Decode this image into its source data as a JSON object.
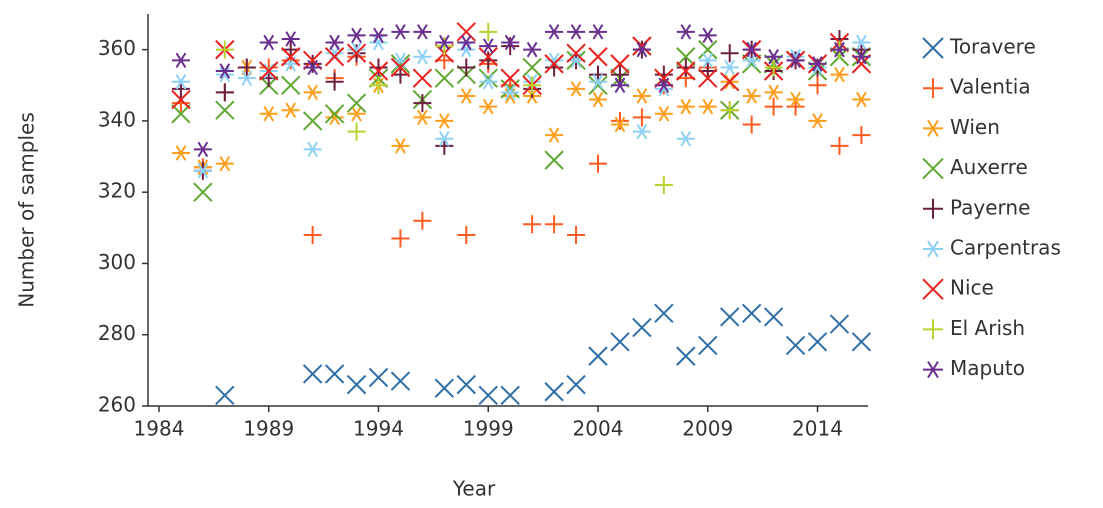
{
  "chart_data": {
    "type": "scatter",
    "x_label": "Year",
    "y_label": "Number of samples",
    "x": [
      1985,
      1986,
      1987,
      1988,
      1989,
      1990,
      1991,
      1992,
      1993,
      1994,
      1995,
      1996,
      1997,
      1998,
      1999,
      2000,
      2001,
      2002,
      2003,
      2004,
      2005,
      2006,
      2007,
      2008,
      2009,
      2010,
      2011,
      2012,
      2013,
      2014,
      2015,
      2016
    ],
    "xlim": [
      1983.5,
      2016.3
    ],
    "xticks": [
      1984,
      1989,
      1994,
      1999,
      2004,
      2009,
      2014
    ],
    "ylim": [
      260,
      370
    ],
    "yticks": [
      260,
      280,
      300,
      320,
      340,
      360
    ],
    "series": [
      {
        "name": "Toravere",
        "color": "#2f6fa7",
        "marker": "x",
        "values": [
          null,
          null,
          263,
          null,
          null,
          null,
          269,
          269,
          266,
          268,
          267,
          null,
          265,
          266,
          263,
          263,
          null,
          264,
          266,
          274,
          278,
          282,
          286,
          274,
          277,
          285,
          286,
          285,
          277,
          278,
          283,
          278
        ]
      },
      {
        "name": "Valentia",
        "color": "#ff5a1f",
        "marker": "plus",
        "values": [
          345,
          327,
          348,
          355,
          355,
          357,
          308,
          352,
          358,
          355,
          307,
          312,
          357,
          308,
          356,
          350,
          311,
          311,
          308,
          328,
          340,
          341,
          350,
          352,
          355,
          343,
          339,
          344,
          344,
          350,
          333,
          336
        ]
      },
      {
        "name": "Wien",
        "color": "#ff9e1a",
        "marker": "star",
        "values": [
          331,
          327,
          328,
          355,
          342,
          343,
          348,
          341,
          342,
          350,
          333,
          341,
          340,
          347,
          344,
          347,
          347,
          336,
          349,
          346,
          339,
          347,
          342,
          344,
          344,
          351,
          347,
          348,
          346,
          340,
          353,
          346
        ]
      },
      {
        "name": "Auxerre",
        "color": "#5fa832",
        "marker": "x",
        "values": [
          342,
          320,
          343,
          null,
          350,
          350,
          340,
          342,
          345,
          352,
          356,
          346,
          352,
          353,
          352,
          349,
          355,
          329,
          357,
          350,
          352,
          361,
          352,
          358,
          360,
          343,
          356,
          356,
          357,
          354,
          358,
          358
        ]
      },
      {
        "name": "Payerne",
        "color": "#6b1f3f",
        "marker": "plus",
        "values": [
          349,
          326,
          348,
          355,
          352,
          360,
          356,
          351,
          359,
          355,
          353,
          345,
          333,
          355,
          357,
          361,
          349,
          355,
          357,
          353,
          353,
          360,
          353,
          355,
          354,
          359,
          360,
          354,
          357,
          355,
          363,
          360
        ]
      },
      {
        "name": "Carpentras",
        "color": "#8fd0f5",
        "marker": "star",
        "values": [
          351,
          326,
          353,
          352,
          354,
          356,
          332,
          359,
          360,
          362,
          357,
          358,
          335,
          360,
          351,
          348,
          351,
          357,
          357,
          351,
          350,
          337,
          349,
          335,
          357,
          355,
          357,
          358,
          358,
          355,
          360,
          362
        ]
      },
      {
        "name": "Nice",
        "color": "#e8221e",
        "marker": "x",
        "values": [
          346,
          null,
          360,
          null,
          354,
          358,
          357,
          358,
          359,
          354,
          355,
          352,
          359,
          365,
          358,
          352,
          350,
          356,
          359,
          358,
          356,
          361,
          352,
          354,
          352,
          351,
          360,
          354,
          357,
          356,
          362,
          356
        ]
      },
      {
        "name": "El Arish",
        "color": "#b5d432",
        "marker": "plus",
        "values": [
          null,
          null,
          360,
          null,
          null,
          null,
          null,
          null,
          337,
          350,
          null,
          null,
          361,
          null,
          365,
          null,
          350,
          null,
          null,
          null,
          null,
          null,
          322,
          null,
          null,
          343,
          null,
          355,
          null,
          null,
          360,
          null
        ]
      },
      {
        "name": "Maputo",
        "color": "#6a2f8f",
        "marker": "star",
        "values": [
          357,
          332,
          354,
          null,
          362,
          363,
          355,
          362,
          364,
          364,
          365,
          365,
          362,
          362,
          361,
          362,
          360,
          365,
          365,
          365,
          350,
          360,
          350,
          365,
          364,
          null,
          360,
          358,
          357,
          356,
          360,
          358
        ]
      }
    ]
  }
}
